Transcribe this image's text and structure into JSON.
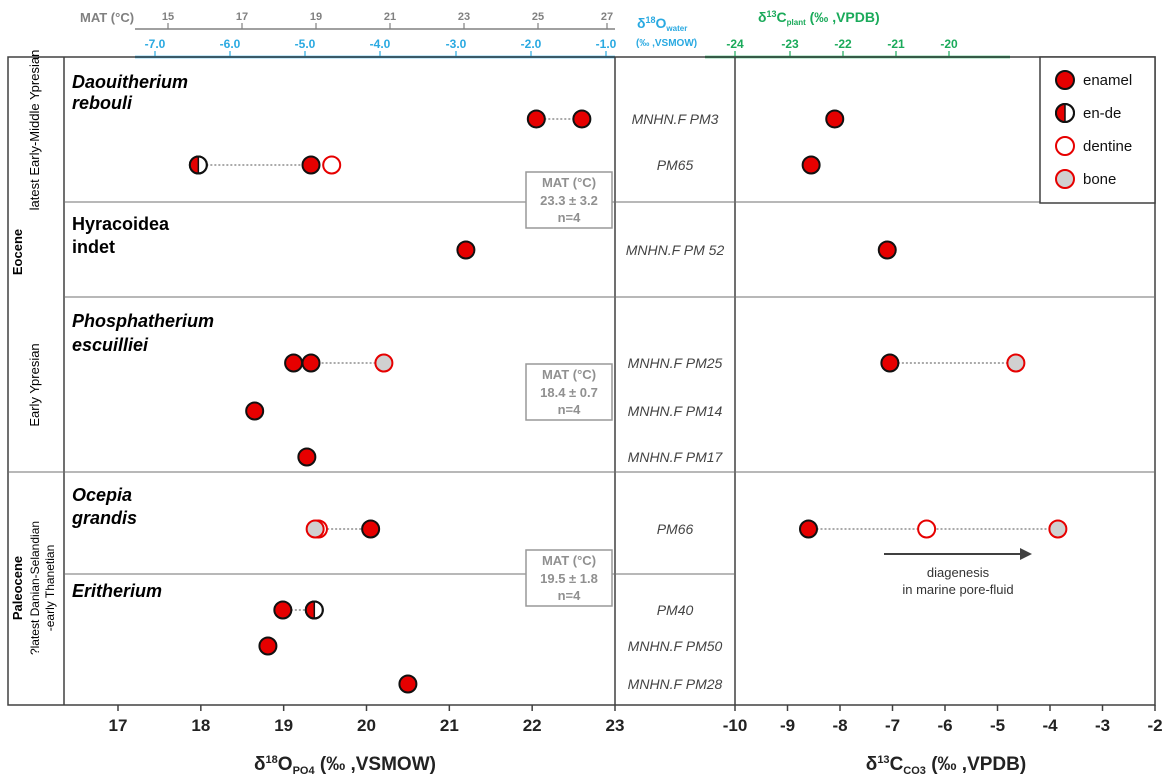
{
  "colors": {
    "enamel": "#e60000",
    "dentine_edge": "#e60000",
    "bone": "#d0d0d0",
    "water_axis": "#29a9e1",
    "plant_axis": "#1aaa5a",
    "mat_axis": "#808080",
    "mat_box": "#999999"
  },
  "periods": [
    {
      "era": "Eocene",
      "label1": "Eocene",
      "label2": "latest Early-Middle Ypresian"
    },
    {
      "era": "Eocene",
      "label1": "",
      "label2": "Early Ypresian"
    },
    {
      "era": "Paleocene",
      "label1": "Paleocene",
      "label2": "?latest Danian-Selandian",
      "label3": "-early Thanetian"
    }
  ],
  "taxa": [
    {
      "name_line1": "Daouitherium",
      "name_line2": "rebouli"
    },
    {
      "name_line1": "Hyracoidea",
      "name_line2": "indet"
    },
    {
      "name_line1": "Phosphatherium",
      "name_line2": "escuilliei"
    },
    {
      "name_line1": "Ocepia",
      "name_line2": "grandis"
    },
    {
      "name_line1": "Eritherium",
      "name_line2": ""
    }
  ],
  "specimens": [
    "MNHN.F PM3",
    "PM65",
    "MNHN.F PM 52",
    "MNHN.F PM25",
    "MNHN.F PM14",
    "MNHN.F PM17",
    "PM66",
    "PM40",
    "MNHN.F PM50",
    "MNHN.F PM28"
  ],
  "mat_boxes": [
    {
      "title": "MAT (°C)",
      "value": "23.3 ± 3.2",
      "n": "n=4"
    },
    {
      "title": "MAT (°C)",
      "value": "18.4 ± 0.7",
      "n": "n=4"
    },
    {
      "title": "MAT (°C)",
      "value": "19.5 ± 1.8",
      "n": "n=4"
    }
  ],
  "legend": [
    {
      "label": "enamel",
      "type": "enamel"
    },
    {
      "label": "en-de",
      "type": "ende"
    },
    {
      "label": "dentine",
      "type": "dentine"
    },
    {
      "label": "bone",
      "type": "bone"
    }
  ],
  "annotation": {
    "line1": "diagenesis",
    "line2": "in marine pore-fluid"
  },
  "chart_data": {
    "type": "scatter",
    "left_panel": {
      "xlabel_main": "δ",
      "xlabel_sup": "18",
      "xlabel_mid": "O",
      "xlabel_sub": "PO4",
      "xlabel_end": " (‰ ,VSMOW)",
      "xlim": [
        16.3,
        23
      ],
      "xticks": [
        "17",
        "18",
        "19",
        "20",
        "21",
        "22",
        "23"
      ],
      "top_axis_mat": {
        "label": "MAT (°C)",
        "ticks": [
          "15",
          "17",
          "19",
          "21",
          "23",
          "25",
          "27"
        ]
      },
      "top_axis_water": {
        "label_main": "δ",
        "label_sup": "18",
        "label_mid": "O",
        "label_sub": "water",
        "label_unit": "(‰ ,VSMOW)",
        "ticks": [
          "-7.0",
          "-6.0",
          "-5.0",
          "-4.0",
          "-3.0",
          "-2.0",
          "-1.0"
        ]
      },
      "points": [
        {
          "row": "MNHN.F PM3",
          "values": [
            {
              "x": 22.05,
              "type": "enamel"
            },
            {
              "x": 22.6,
              "type": "enamel"
            }
          ]
        },
        {
          "row": "PM65",
          "values": [
            {
              "x": 17.97,
              "type": "ende"
            },
            {
              "x": 19.33,
              "type": "enamel"
            },
            {
              "x": 19.58,
              "type": "dentine"
            }
          ]
        },
        {
          "row": "MNHN.F PM 52",
          "values": [
            {
              "x": 21.2,
              "type": "enamel"
            }
          ]
        },
        {
          "row": "MNHN.F PM25",
          "values": [
            {
              "x": 19.12,
              "type": "enamel"
            },
            {
              "x": 19.33,
              "type": "enamel"
            },
            {
              "x": 20.21,
              "type": "bone"
            }
          ]
        },
        {
          "row": "MNHN.F PM14",
          "values": [
            {
              "x": 18.65,
              "type": "enamel"
            }
          ]
        },
        {
          "row": "MNHN.F PM17",
          "values": [
            {
              "x": 19.28,
              "type": "enamel"
            }
          ]
        },
        {
          "row": "PM66",
          "values": [
            {
              "x": 19.42,
              "type": "dentine"
            },
            {
              "x": 19.38,
              "type": "bone"
            },
            {
              "x": 20.05,
              "type": "enamel"
            }
          ]
        },
        {
          "row": "PM40",
          "values": [
            {
              "x": 18.99,
              "type": "enamel"
            },
            {
              "x": 19.37,
              "type": "ende"
            }
          ]
        },
        {
          "row": "MNHN.F PM50",
          "values": [
            {
              "x": 18.81,
              "type": "enamel"
            }
          ]
        },
        {
          "row": "MNHN.F PM28",
          "values": [
            {
              "x": 20.5,
              "type": "enamel"
            }
          ]
        }
      ]
    },
    "right_panel": {
      "xlabel_main": "δ",
      "xlabel_sup": "13",
      "xlabel_mid": "C",
      "xlabel_sub": "CO3",
      "xlabel_end": " (‰ ,VPDB)",
      "xlim": [
        -10,
        -2
      ],
      "xticks": [
        "-10",
        "-9",
        "-8",
        "-7",
        "-6",
        "-5",
        "-4",
        "-3",
        "-2"
      ],
      "top_axis_plant": {
        "label_main": "δ",
        "label_sup": "13",
        "label_mid": "C",
        "label_sub": "plant",
        "label_unit": " (‰ ,VPDB)",
        "ticks": [
          "-24",
          "-23",
          "-22",
          "-21",
          "-20"
        ]
      },
      "points": [
        {
          "row": "MNHN.F PM3",
          "values": [
            {
              "x": -8.1,
              "type": "enamel"
            }
          ]
        },
        {
          "row": "PM65",
          "values": [
            {
              "x": -8.55,
              "type": "enamel"
            }
          ]
        },
        {
          "row": "MNHN.F PM 52",
          "values": [
            {
              "x": -7.1,
              "type": "enamel"
            }
          ]
        },
        {
          "row": "MNHN.F PM25",
          "values": [
            {
              "x": -7.05,
              "type": "enamel"
            },
            {
              "x": -4.65,
              "type": "bone"
            }
          ]
        },
        {
          "row": "PM66",
          "values": [
            {
              "x": -8.6,
              "type": "enamel"
            },
            {
              "x": -6.35,
              "type": "dentine"
            },
            {
              "x": -3.85,
              "type": "bone"
            }
          ]
        }
      ]
    }
  }
}
